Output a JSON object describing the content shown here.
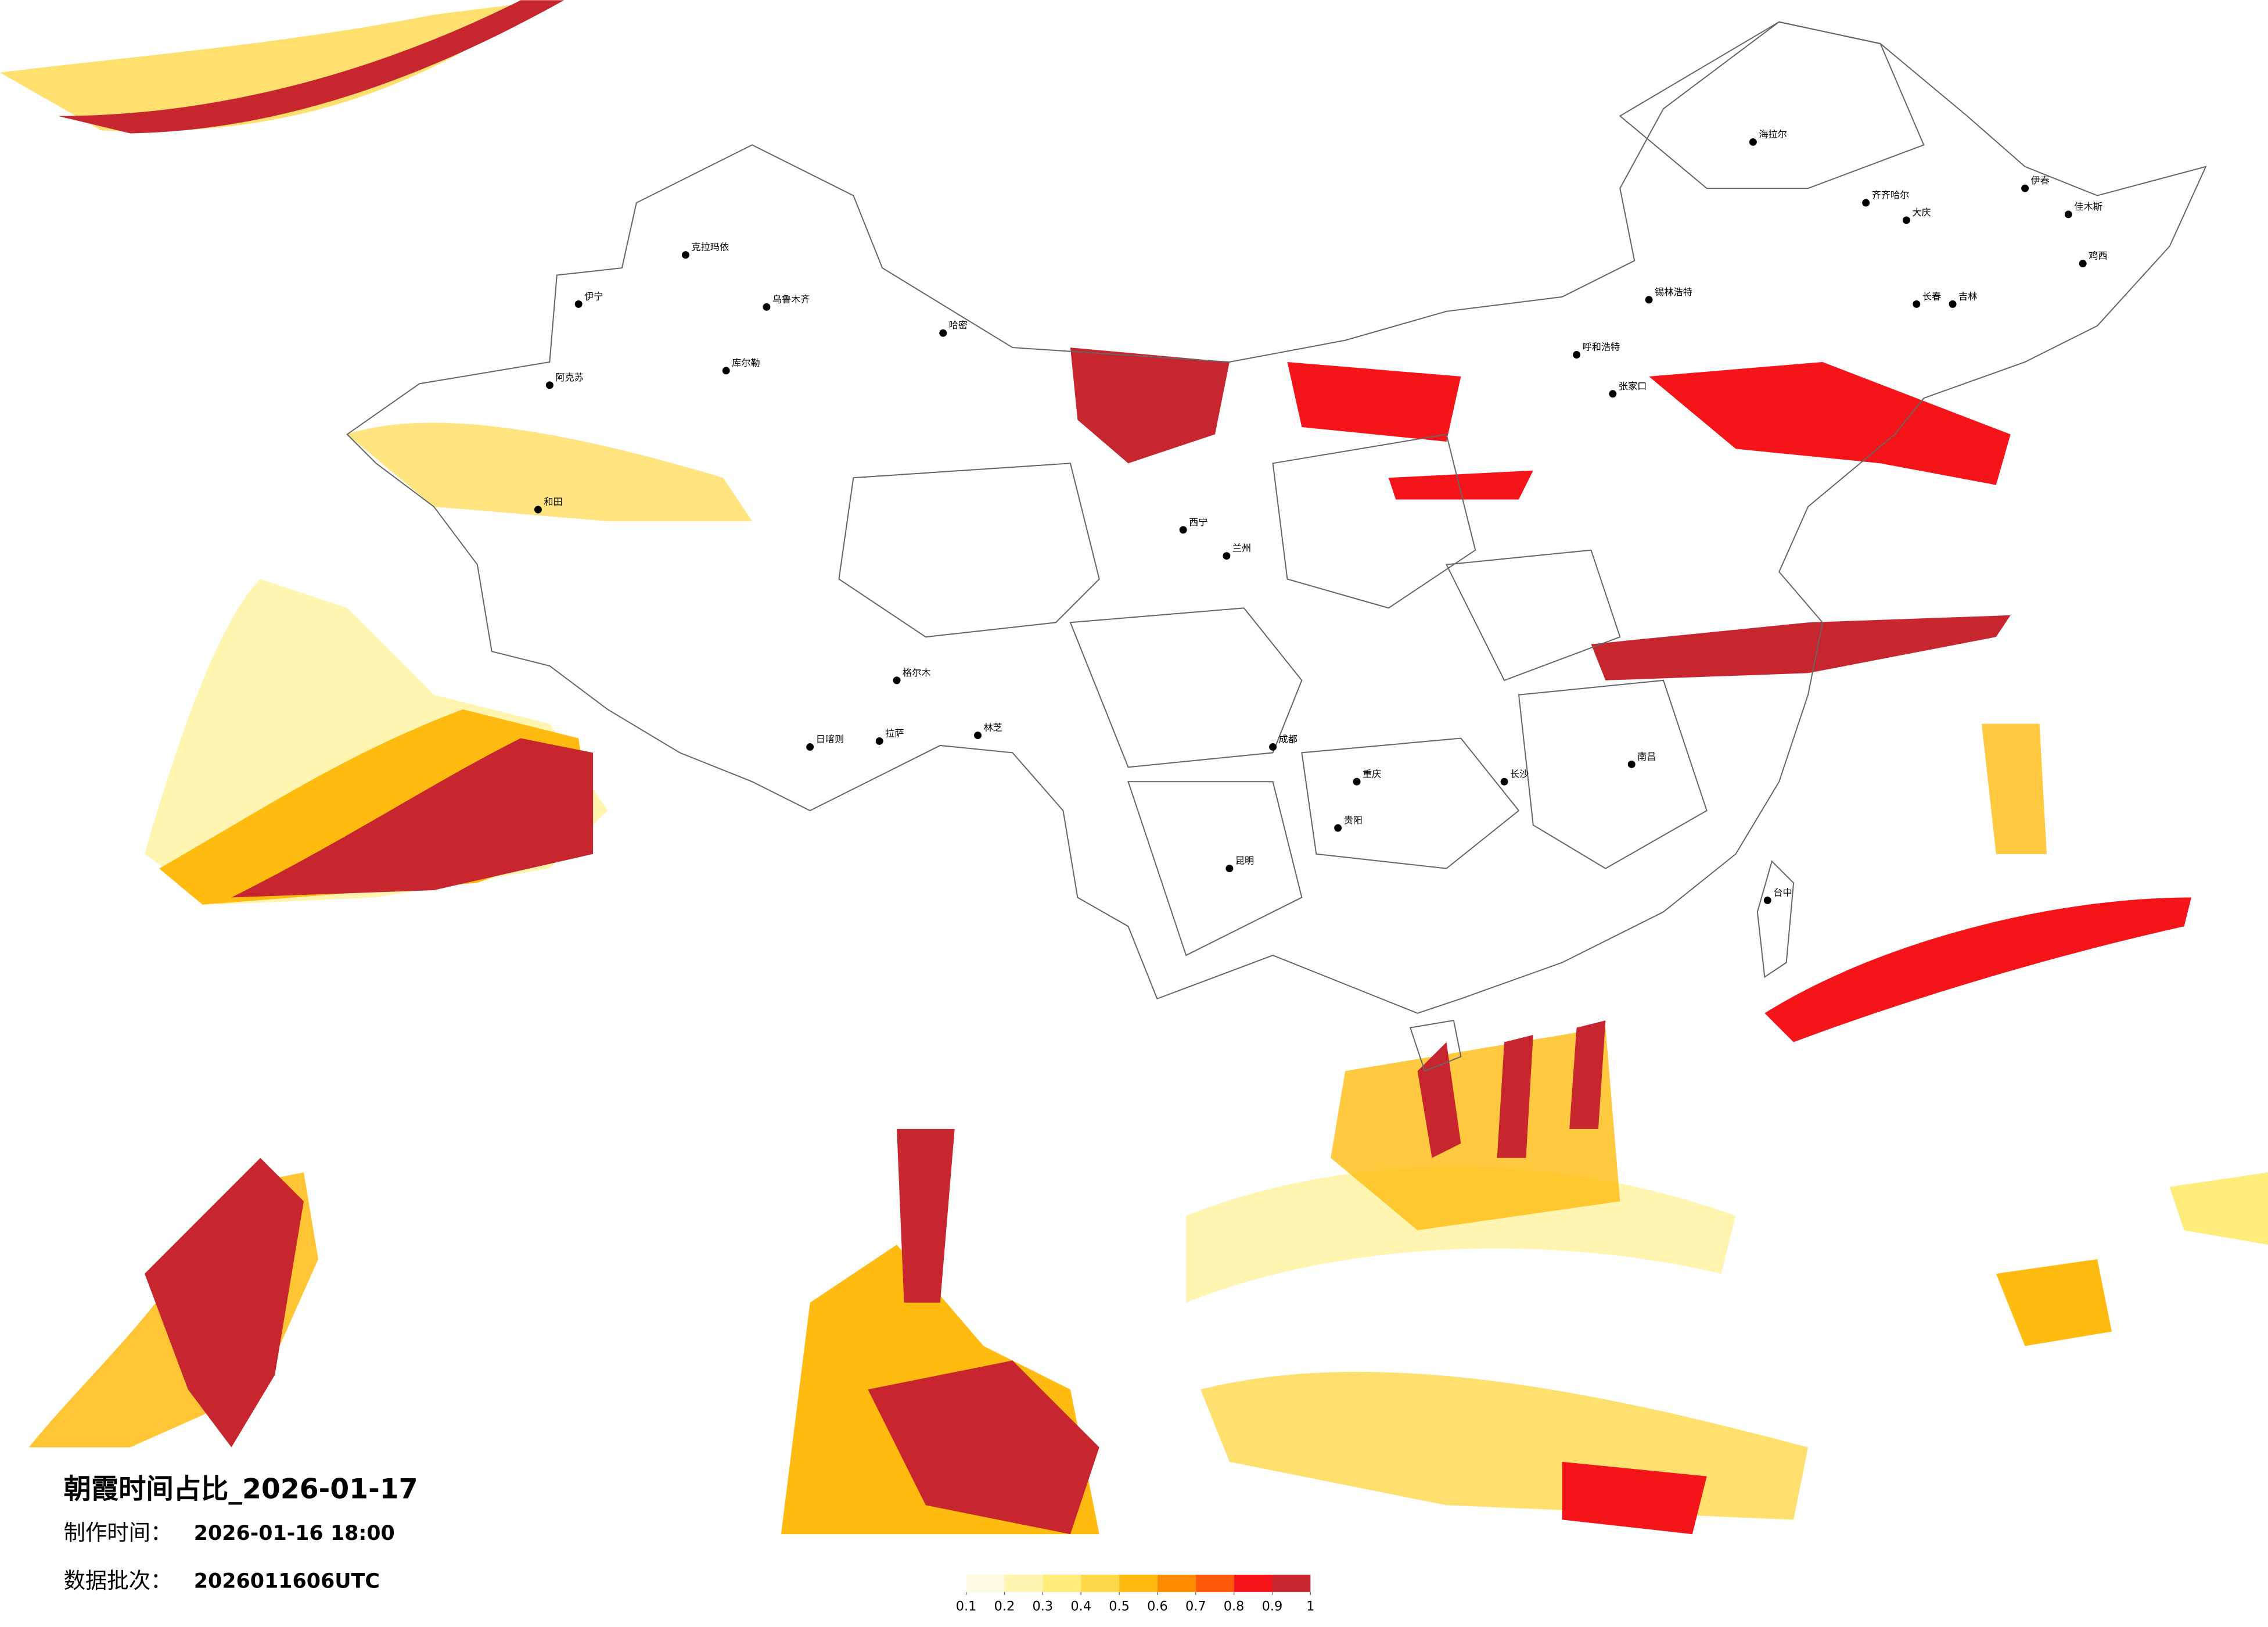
{
  "title": "朝霞时间占比_2026-01-17",
  "made_time_label": "制作时间：",
  "made_time": "2026-01-16 18:00",
  "batch_label": "数据批次：",
  "batch": "2026011606UTC",
  "legend": {
    "colors": [
      "#fffbe3",
      "#fff5b0",
      "#ffec7a",
      "#ffd84a",
      "#ffbb10",
      "#ff8c00",
      "#ff5a0a",
      "#f5141a",
      "#c8262e"
    ],
    "ticks": [
      0.1,
      0.2,
      0.3,
      0.4,
      0.5,
      0.6,
      0.7,
      0.8,
      0.9,
      1
    ]
  },
  "cities": [
    "海拉尔",
    "齐齐哈尔",
    "大庆",
    "伊春",
    "佳木斯",
    "鸡西",
    "长春",
    "吉林",
    "锡林浩特",
    "呼和浩特",
    "张家口",
    "克拉玛依",
    "乌鲁木齐",
    "哈密",
    "库尔勒",
    "阿克苏",
    "伊宁",
    "和田",
    "格尔木",
    "拉萨",
    "日喀则",
    "林芝",
    "西宁",
    "兰州",
    "成都",
    "重庆",
    "贵阳",
    "昆明",
    "长沙",
    "南昌",
    "台中"
  ]
}
